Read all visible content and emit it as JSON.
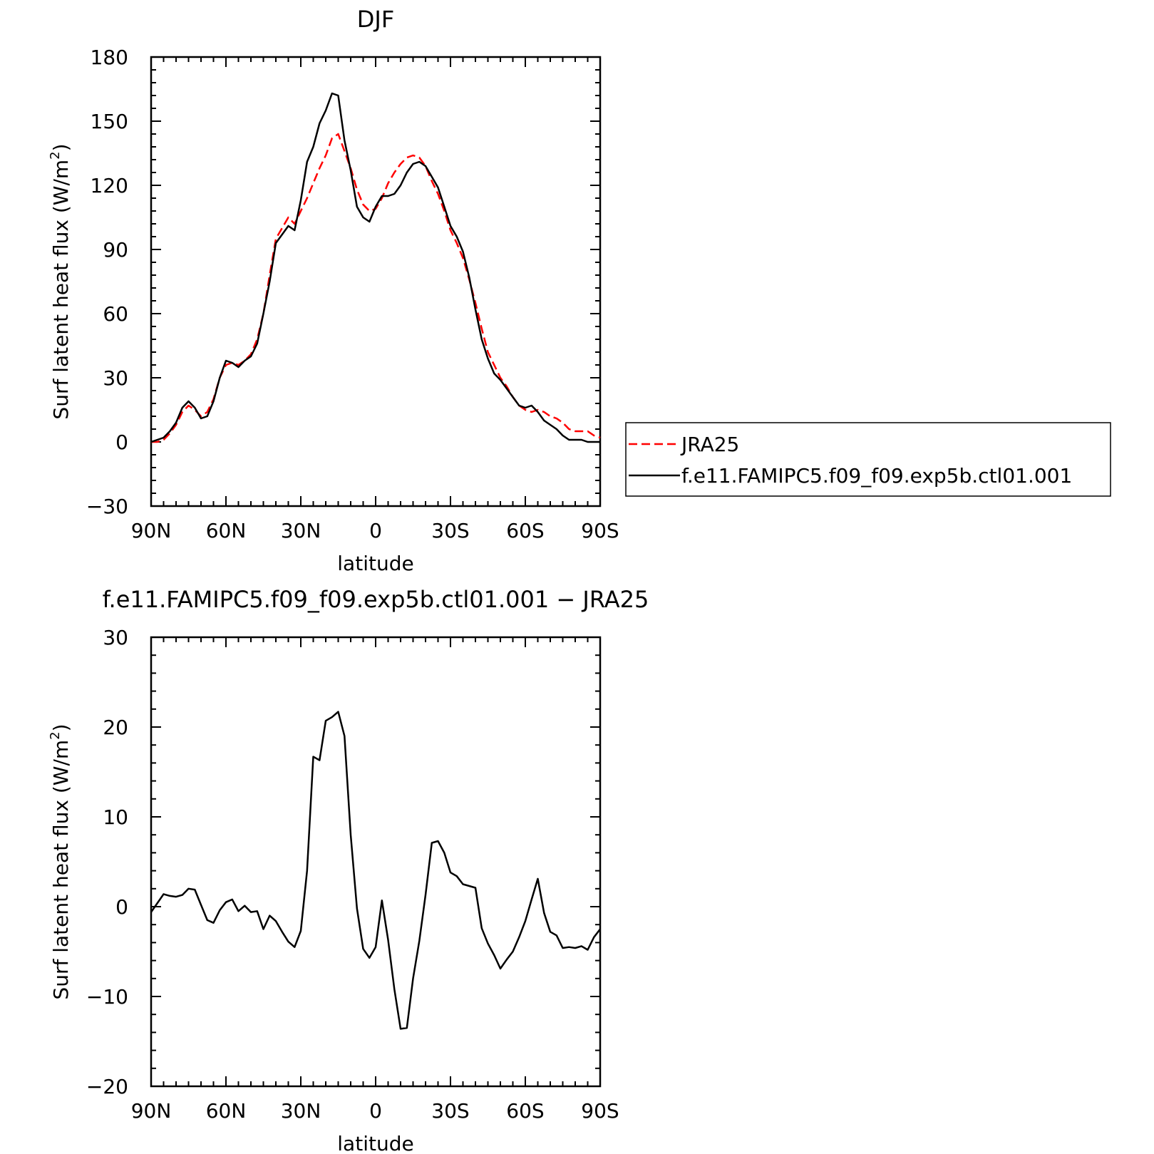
{
  "chart_data": [
    {
      "type": "line",
      "title": "DJF",
      "xlabel": "latitude",
      "ylabel": "Surf latent heat flux (W/m²)",
      "ylabel_main": "Surf latent heat flux (W/m",
      "ylabel_sup": "2",
      "ylabel_tail": ")",
      "xlim": [
        90,
        -90
      ],
      "ylim": [
        -30,
        180
      ],
      "x_ticks": [
        {
          "value": 90,
          "label": "90N"
        },
        {
          "value": 60,
          "label": "60N"
        },
        {
          "value": 30,
          "label": "30N"
        },
        {
          "value": 0,
          "label": "0"
        },
        {
          "value": -30,
          "label": "30S"
        },
        {
          "value": -60,
          "label": "60S"
        },
        {
          "value": -90,
          "label": "90S"
        }
      ],
      "y_ticks": [
        {
          "value": -30,
          "label": "−30"
        },
        {
          "value": 0,
          "label": "0"
        },
        {
          "value": 30,
          "label": "30"
        },
        {
          "value": 60,
          "label": "60"
        },
        {
          "value": 90,
          "label": "90"
        },
        {
          "value": 120,
          "label": "120"
        },
        {
          "value": 150,
          "label": "150"
        },
        {
          "value": 180,
          "label": "180"
        }
      ],
      "legend": {
        "placement": "outside-right"
      },
      "series": [
        {
          "name": "JRA25",
          "color": "#ff0000",
          "dash": true,
          "points": [
            [
              90,
              0
            ],
            [
              87.5,
              0
            ],
            [
              85,
              1
            ],
            [
              82.5,
              4
            ],
            [
              80,
              8
            ],
            [
              77.5,
              14
            ],
            [
              75,
              17
            ],
            [
              72.5,
              15
            ],
            [
              70,
              12
            ],
            [
              67.5,
              14
            ],
            [
              65,
              20
            ],
            [
              62.5,
              30
            ],
            [
              60,
              36
            ],
            [
              57.5,
              37
            ],
            [
              55,
              36
            ],
            [
              52.5,
              38
            ],
            [
              50,
              41
            ],
            [
              47.5,
              48
            ],
            [
              45,
              60
            ],
            [
              42.5,
              78
            ],
            [
              40,
              95
            ],
            [
              37.5,
              100
            ],
            [
              35,
              105
            ],
            [
              32.5,
              102
            ],
            [
              30,
              108
            ],
            [
              27.5,
              114
            ],
            [
              25,
              121
            ],
            [
              22.5,
              128
            ],
            [
              20,
              134
            ],
            [
              17.5,
              142
            ],
            [
              15,
              144
            ],
            [
              12.5,
              136
            ],
            [
              10,
              128
            ],
            [
              7.5,
              118
            ],
            [
              5,
              111
            ],
            [
              2.5,
              108
            ],
            [
              0,
              109
            ],
            [
              -2.5,
              114
            ],
            [
              -5,
              121
            ],
            [
              -7.5,
              126
            ],
            [
              -10,
              130
            ],
            [
              -12.5,
              133
            ],
            [
              -15,
              134
            ],
            [
              -17.5,
              133
            ],
            [
              -20,
              129
            ],
            [
              -22.5,
              122
            ],
            [
              -25,
              116
            ],
            [
              -27.5,
              108
            ],
            [
              -30,
              99
            ],
            [
              -32.5,
              93
            ],
            [
              -35,
              86
            ],
            [
              -37.5,
              76
            ],
            [
              -40,
              65
            ],
            [
              -42.5,
              53
            ],
            [
              -45,
              42
            ],
            [
              -47.5,
              36
            ],
            [
              -50,
              30
            ],
            [
              -52.5,
              26
            ],
            [
              -55,
              21
            ],
            [
              -57.5,
              17
            ],
            [
              -60,
              15
            ],
            [
              -62.5,
              14
            ],
            [
              -65,
              15
            ],
            [
              -67.5,
              14
            ],
            [
              -70,
              12
            ],
            [
              -72.5,
              11
            ],
            [
              -75,
              9
            ],
            [
              -77.5,
              6
            ],
            [
              -80,
              5
            ],
            [
              -82.5,
              5
            ],
            [
              -85,
              5
            ],
            [
              -87.5,
              3
            ],
            [
              -90,
              2
            ]
          ]
        },
        {
          "name": "f.e11.FAMIPC5.f09_f09.exp5b.ctl01.001",
          "color": "#000000",
          "dash": false,
          "points": [
            [
              90,
              0
            ],
            [
              87.5,
              1
            ],
            [
              85,
              2
            ],
            [
              82.5,
              5
            ],
            [
              80,
              9
            ],
            [
              77.5,
              16
            ],
            [
              75,
              19
            ],
            [
              72.5,
              16
            ],
            [
              70,
              11
            ],
            [
              67.5,
              12
            ],
            [
              65,
              19
            ],
            [
              62.5,
              30
            ],
            [
              60,
              38
            ],
            [
              57.5,
              37
            ],
            [
              55,
              35
            ],
            [
              52.5,
              38
            ],
            [
              50,
              40
            ],
            [
              47.5,
              46
            ],
            [
              45,
              60
            ],
            [
              42.5,
              75
            ],
            [
              40,
              93
            ],
            [
              37.5,
              97
            ],
            [
              35,
              101
            ],
            [
              32.5,
              99
            ],
            [
              30,
              113
            ],
            [
              27.5,
              131
            ],
            [
              25,
              138
            ],
            [
              22.5,
              149
            ],
            [
              20,
              155
            ],
            [
              17.5,
              163
            ],
            [
              15,
              162
            ],
            [
              12.5,
              141
            ],
            [
              10,
              127
            ],
            [
              7.5,
              110
            ],
            [
              5,
              105
            ],
            [
              2.5,
              103
            ],
            [
              0,
              110
            ],
            [
              -2.5,
              115
            ],
            [
              -5,
              115
            ],
            [
              -7.5,
              116
            ],
            [
              -10,
              120
            ],
            [
              -12.5,
              126
            ],
            [
              -15,
              130
            ],
            [
              -17.5,
              131
            ],
            [
              -20,
              129
            ],
            [
              -22.5,
              124
            ],
            [
              -25,
              119
            ],
            [
              -27.5,
              110
            ],
            [
              -30,
              101
            ],
            [
              -32.5,
              96
            ],
            [
              -35,
              89
            ],
            [
              -37.5,
              77
            ],
            [
              -40,
              62
            ],
            [
              -42.5,
              48
            ],
            [
              -45,
              39
            ],
            [
              -47.5,
              32
            ],
            [
              -50,
              29
            ],
            [
              -52.5,
              25
            ],
            [
              -55,
              21
            ],
            [
              -57.5,
              17
            ],
            [
              -60,
              16
            ],
            [
              -62.5,
              17
            ],
            [
              -65,
              14
            ],
            [
              -67.5,
              10
            ],
            [
              -70,
              8
            ],
            [
              -72.5,
              6
            ],
            [
              -75,
              3
            ],
            [
              -77.5,
              1
            ],
            [
              -80,
              1
            ],
            [
              -82.5,
              1
            ],
            [
              -85,
              0
            ],
            [
              -87.5,
              0
            ],
            [
              -90,
              0
            ]
          ]
        }
      ]
    },
    {
      "type": "line",
      "title": "f.e11.FAMIPC5.f09_f09.exp5b.ctl01.001 − JRA25",
      "xlabel": "latitude",
      "ylabel": "Surf latent heat flux (W/m²)",
      "ylabel_main": "Surf latent heat flux (W/m",
      "ylabel_sup": "2",
      "ylabel_tail": ")",
      "xlim": [
        90,
        -90
      ],
      "ylim": [
        -20,
        30
      ],
      "x_ticks": [
        {
          "value": 90,
          "label": "90N"
        },
        {
          "value": 60,
          "label": "60N"
        },
        {
          "value": 30,
          "label": "30N"
        },
        {
          "value": 0,
          "label": "0"
        },
        {
          "value": -30,
          "label": "30S"
        },
        {
          "value": -60,
          "label": "60S"
        },
        {
          "value": -90,
          "label": "90S"
        }
      ],
      "y_ticks": [
        {
          "value": -20,
          "label": "−20"
        },
        {
          "value": -10,
          "label": "−10"
        },
        {
          "value": 0,
          "label": "0"
        },
        {
          "value": 10,
          "label": "10"
        },
        {
          "value": 20,
          "label": "20"
        },
        {
          "value": 30,
          "label": "30"
        }
      ],
      "series": [
        {
          "color": "#000000",
          "dash": false,
          "points": [
            [
              90,
              -0.6
            ],
            [
              87.5,
              0.4
            ],
            [
              85,
              1.4
            ],
            [
              82.5,
              1.2
            ],
            [
              80,
              1.1
            ],
            [
              77.5,
              1.3
            ],
            [
              75,
              2.0
            ],
            [
              72.5,
              1.9
            ],
            [
              70,
              0.2
            ],
            [
              67.5,
              -1.5
            ],
            [
              65,
              -1.8
            ],
            [
              62.5,
              -0.4
            ],
            [
              60,
              0.5
            ],
            [
              57.5,
              0.8
            ],
            [
              55,
              -0.5
            ],
            [
              52.5,
              0.1
            ],
            [
              50,
              -0.6
            ],
            [
              47.5,
              -0.5
            ],
            [
              45,
              -2.5
            ],
            [
              42.5,
              -1.0
            ],
            [
              40,
              -1.6
            ],
            [
              37.5,
              -2.8
            ],
            [
              35,
              -3.9
            ],
            [
              32.5,
              -4.5
            ],
            [
              30,
              -2.7
            ],
            [
              27.5,
              4.0
            ],
            [
              25,
              16.7
            ],
            [
              22.5,
              16.3
            ],
            [
              20,
              20.7
            ],
            [
              17.5,
              21.1
            ],
            [
              15,
              21.7
            ],
            [
              12.5,
              19.0
            ],
            [
              10,
              8.0
            ],
            [
              7.5,
              -0.2
            ],
            [
              5,
              -4.7
            ],
            [
              2.5,
              -5.7
            ],
            [
              0,
              -4.5
            ],
            [
              -2.5,
              0.7
            ],
            [
              -5,
              -3.7
            ],
            [
              -7.5,
              -9.2
            ],
            [
              -10,
              -13.6
            ],
            [
              -12.5,
              -13.5
            ],
            [
              -15,
              -8.0
            ],
            [
              -17.5,
              -3.8
            ],
            [
              -20,
              1.3
            ],
            [
              -22.5,
              7.1
            ],
            [
              -25,
              7.3
            ],
            [
              -27.5,
              6.0
            ],
            [
              -30,
              3.8
            ],
            [
              -32.5,
              3.4
            ],
            [
              -35,
              2.5
            ],
            [
              -37.5,
              2.3
            ],
            [
              -40,
              2.1
            ],
            [
              -42.5,
              -2.4
            ],
            [
              -45,
              -4.1
            ],
            [
              -47.5,
              -5.4
            ],
            [
              -50,
              -6.9
            ],
            [
              -52.5,
              -5.9
            ],
            [
              -55,
              -5.0
            ],
            [
              -57.5,
              -3.4
            ],
            [
              -60,
              -1.6
            ],
            [
              -62.5,
              0.8
            ],
            [
              -65,
              3.1
            ],
            [
              -67.5,
              -0.7
            ],
            [
              -70,
              -2.8
            ],
            [
              -72.5,
              -3.2
            ],
            [
              -75,
              -4.6
            ],
            [
              -77.5,
              -4.5
            ],
            [
              -80,
              -4.6
            ],
            [
              -82.5,
              -4.4
            ],
            [
              -85,
              -4.8
            ],
            [
              -87.5,
              -3.4
            ],
            [
              -90,
              -2.5
            ]
          ]
        }
      ]
    }
  ]
}
